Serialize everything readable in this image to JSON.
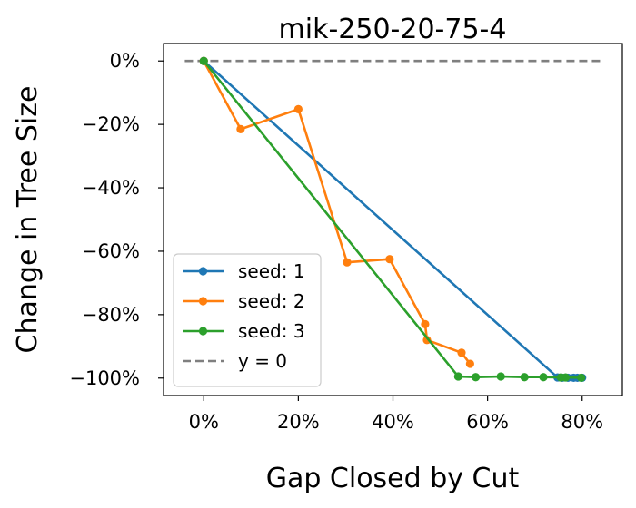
{
  "chart_data": {
    "type": "line",
    "title": "mik-250-20-75-4",
    "xlabel": "Gap Closed by Cut",
    "ylabel": "Change in Tree Size",
    "xlim": [
      -0.085,
      0.885
    ],
    "ylim": [
      -1.055,
      0.055
    ],
    "xticks": [
      {
        "value": 0.0,
        "label": "0%"
      },
      {
        "value": 0.2,
        "label": "20%"
      },
      {
        "value": 0.4,
        "label": "40%"
      },
      {
        "value": 0.6,
        "label": "60%"
      },
      {
        "value": 0.8,
        "label": "80%"
      }
    ],
    "yticks": [
      {
        "value": 0.0,
        "label": "0%"
      },
      {
        "value": -0.2,
        "label": "−20%"
      },
      {
        "value": -0.4,
        "label": "−40%"
      },
      {
        "value": -0.6,
        "label": "−60%"
      },
      {
        "value": -0.8,
        "label": "−80%"
      },
      {
        "value": -1.0,
        "label": "−100%"
      }
    ],
    "grid": false,
    "legend_position": "lower-left",
    "series": [
      {
        "name": "seed: 1",
        "color": "#1f77b4",
        "style": "solid-marker",
        "points": [
          [
            0.0,
            0.0
          ],
          [
            0.748,
            -0.998
          ],
          [
            0.758,
            -0.999
          ],
          [
            0.77,
            -0.999
          ],
          [
            0.782,
            -0.999
          ],
          [
            0.79,
            -0.999
          ],
          [
            0.8,
            -0.999
          ]
        ]
      },
      {
        "name": "seed: 2",
        "color": "#ff7f0e",
        "style": "solid-marker",
        "points": [
          [
            0.0,
            0.0
          ],
          [
            0.078,
            -0.215
          ],
          [
            0.2,
            -0.152
          ],
          [
            0.303,
            -0.635
          ],
          [
            0.393,
            -0.625
          ],
          [
            0.468,
            -0.83
          ],
          [
            0.472,
            -0.88
          ],
          [
            0.545,
            -0.92
          ],
          [
            0.563,
            -0.955
          ]
        ]
      },
      {
        "name": "seed: 3",
        "color": "#2ca02c",
        "style": "solid-marker",
        "points": [
          [
            0.0,
            0.0
          ],
          [
            0.538,
            -0.995
          ],
          [
            0.575,
            -0.997
          ],
          [
            0.628,
            -0.995
          ],
          [
            0.678,
            -0.997
          ],
          [
            0.718,
            -0.997
          ],
          [
            0.755,
            -0.998
          ],
          [
            0.765,
            -0.998
          ],
          [
            0.798,
            -0.999
          ]
        ]
      },
      {
        "name": "y = 0",
        "color": "#7f7f7f",
        "style": "dashed",
        "points": [
          [
            -0.04,
            0.0
          ],
          [
            0.84,
            0.0
          ]
        ]
      }
    ]
  }
}
